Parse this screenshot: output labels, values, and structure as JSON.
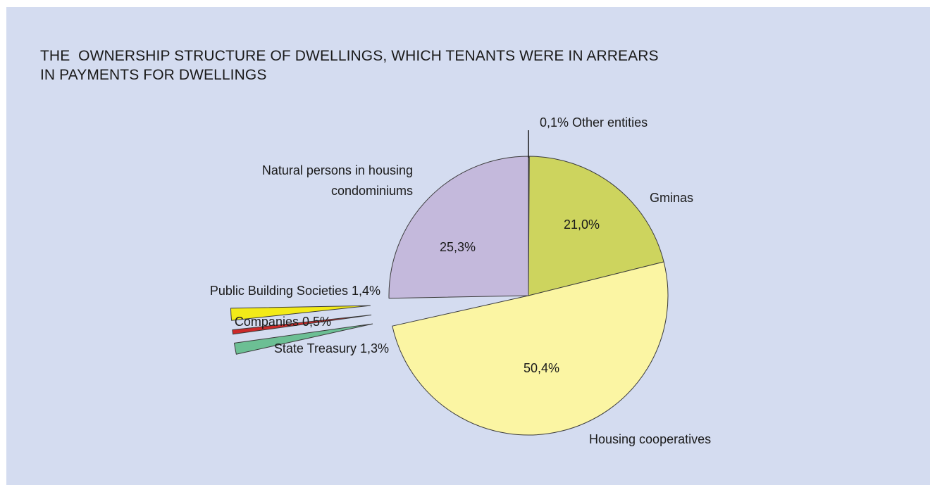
{
  "chart_data": {
    "type": "pie",
    "title_lines": [
      "THE  OWNERSHIP STRUCTURE OF DWELLINGS, WHICH TENANTS WERE IN ARREARS",
      "IN PAYMENTS FOR DWELLINGS"
    ],
    "slices": [
      {
        "key": "other",
        "value": 0.1,
        "label": "0,1%  Other entities",
        "pct_label": "",
        "color": "#2a2a2a",
        "exploded": false
      },
      {
        "key": "gminas",
        "value": 21.0,
        "label": "Gminas",
        "pct_label": "21,0%",
        "color": "#cdd45e",
        "exploded": false
      },
      {
        "key": "housing",
        "value": 50.4,
        "label": "Housing cooperatives",
        "pct_label": "50,4%",
        "color": "#fbf5a3",
        "exploded": false
      },
      {
        "key": "state",
        "value": 1.3,
        "label": "State Treasury 1,3%",
        "pct_label": "",
        "color": "#6cbf94",
        "exploded": true
      },
      {
        "key": "companies",
        "value": 0.5,
        "label": "Companies  0,5%",
        "pct_label": "",
        "color": "#cc2a2a",
        "exploded": true
      },
      {
        "key": "public",
        "value": 1.4,
        "label": "Public Building Societies 1,4%",
        "pct_label": "",
        "color": "#f2ea18",
        "exploded": true
      },
      {
        "key": "natural",
        "value": 25.3,
        "label_lines": [
          "Natural persons in housing",
          "condominiums"
        ],
        "pct_label": "25,3%",
        "color": "#c4b9dc",
        "exploded": false
      }
    ]
  }
}
